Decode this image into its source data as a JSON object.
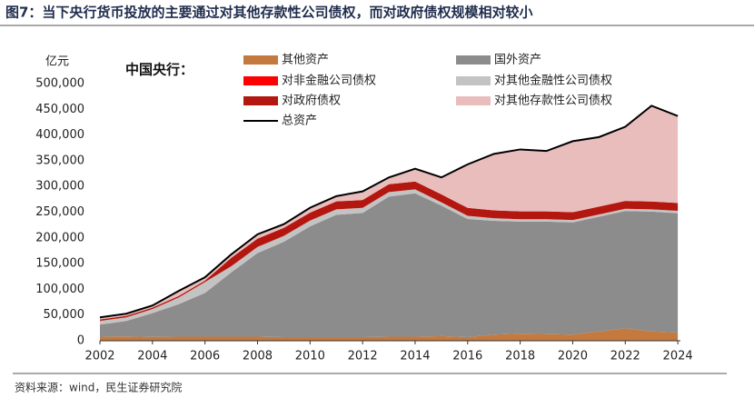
{
  "chart_data": {
    "type": "stacked_area",
    "title": "图7：当下央行货币投放的主要通过对其他存款性公司债权，而对政府债权规模相对较小",
    "subtitle": "中国央行：",
    "y_label": "亿元",
    "source": "资料来源：wind，民生证券研究院",
    "x": [
      2002,
      2003,
      2004,
      2005,
      2006,
      2007,
      2008,
      2009,
      2010,
      2011,
      2012,
      2013,
      2014,
      2015,
      2016,
      2017,
      2018,
      2019,
      2020,
      2021,
      2022,
      2023,
      2024
    ],
    "series": [
      {
        "name": "其他资产",
        "color": "#c47a3e",
        "values": [
          8000,
          8500,
          7500,
          8000,
          8000,
          8000,
          8000,
          7000,
          7000,
          7000,
          7000,
          8000,
          8000,
          9000,
          7000,
          12000,
          14000,
          13000,
          12000,
          18000,
          24000,
          18000,
          16000
        ]
      },
      {
        "name": "国外资产",
        "color": "#8c8c8c",
        "values": [
          23200,
          29800,
          46000,
          63000,
          85000,
          124800,
          162500,
          185300,
          215400,
          237900,
          241400,
          272200,
          278600,
          253800,
          229600,
          221200,
          217600,
          218600,
          218000,
          223000,
          228000,
          233000,
          232000
        ]
      },
      {
        "name": "对非金融公司债权",
        "color": "#ff0000",
        "values": [
          200,
          200,
          140,
          70,
          70,
          60,
          40,
          40,
          30,
          30,
          30,
          20,
          20,
          20,
          100,
          100,
          100,
          100,
          100,
          100,
          100,
          100,
          100
        ]
      },
      {
        "name": "对其他金融性公司债权",
        "color": "#c3c3c3",
        "values": [
          7200,
          7000,
          8000,
          13000,
          21000,
          12000,
          11800,
          11500,
          11300,
          10600,
          10000,
          8900,
          7800,
          6500,
          6300,
          5000,
          4600,
          4600,
          4600,
          4500,
          4500,
          4500,
          4500
        ]
      },
      {
        "name": "对政府债权",
        "color": "#b3170f",
        "values": [
          2900,
          2900,
          2900,
          2900,
          2900,
          16300,
          16200,
          15700,
          15400,
          15400,
          15300,
          15300,
          15300,
          15300,
          15300,
          15300,
          15300,
          15200,
          15200,
          15200,
          15200,
          15200,
          15200
        ]
      },
      {
        "name": "对其他存款性公司债权",
        "color": "#eabdbd",
        "values": [
          4000,
          4200,
          4000,
          10000,
          6500,
          6800,
          8400,
          7200,
          9500,
          10200,
          16700,
          13100,
          24800,
          33000,
          84700,
          109700,
          120400,
          117500,
          138100,
          135200,
          144200,
          186200,
          169200
        ]
      }
    ],
    "total": {
      "name": "总资产",
      "color": "#000000",
      "values": [
        45500,
        52600,
        68540,
        96970,
        123470,
        167960,
        206940,
        226740,
        258630,
        281130,
        290430,
        317520,
        334520,
        317620,
        343000,
        363300,
        372000,
        369000,
        388000,
        396000,
        416000,
        457000,
        437000
      ]
    },
    "xlim": [
      2002,
      2024.1
    ],
    "xticks": [
      2002,
      2004,
      2006,
      2008,
      2010,
      2012,
      2014,
      2016,
      2018,
      2020,
      2022,
      2024
    ],
    "ylim": [
      0,
      500000
    ],
    "yticks": [
      0,
      {
        "value": 50000,
        "label": "50,000"
      },
      {
        "value": 100000,
        "label": "100,000"
      },
      {
        "value": 150000,
        "label": "150,000"
      },
      {
        "value": 200000,
        "label": "200,000"
      },
      {
        "value": 250000,
        "label": "250,000"
      },
      {
        "value": 300000,
        "label": "300,000"
      },
      {
        "value": 350000,
        "label": "350,000"
      },
      {
        "value": 400000,
        "label": "400,000"
      },
      {
        "value": 450000,
        "label": "450,000"
      },
      {
        "value": 500000,
        "label": "500,000"
      }
    ]
  }
}
